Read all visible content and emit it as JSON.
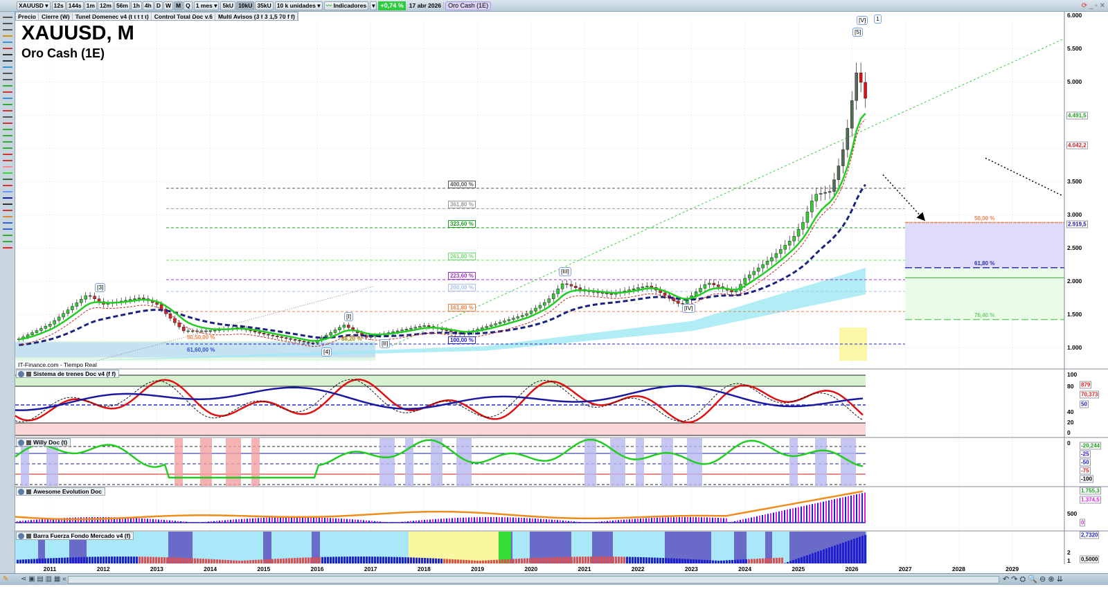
{
  "toolbar": {
    "symbol": "XAUUSD",
    "intervals": [
      "12s",
      "144s",
      "1m",
      "12m",
      "56m",
      "1h",
      "4h",
      "D",
      "W",
      "M",
      "Q"
    ],
    "active_interval": "M",
    "period": "1 mes",
    "units": [
      "5kU",
      "10kU",
      "35kU"
    ],
    "active_unit": "10kU",
    "unit_select": "10 k unidades",
    "indicators_label": "Indicadores",
    "change_pct": "+0,74 %",
    "date": "17 abr 2026",
    "instrument_tag": "Oro Cash (1E)"
  },
  "indicator_bar": [
    "Precio",
    "Cierre (W)",
    "Tunel Domenec v4 (t t t t t)",
    "Control Total Doc v.6",
    "Multi Avisos (3 f 3 1,5 70 f f)"
  ],
  "chart": {
    "title": "XAUUSD, M",
    "subtitle": "Oro Cash (1E)",
    "source": "IT-Finance.com - Tiempo Real",
    "price_axis": [
      "6.000",
      "5.500",
      "5.000",
      "3.500",
      "3.000",
      "2.500",
      "2.000",
      "1.500",
      "1.000"
    ],
    "price_badges": [
      {
        "text": "4.491,5",
        "color": "#1a9e1a"
      },
      {
        "text": "4.042,2",
        "color": "#c81e1e"
      },
      {
        "text": "2.919,5",
        "color": "#1a1aa0"
      }
    ],
    "fib_levels": [
      {
        "label": "400,00 %",
        "price": 3396,
        "color": "#555555"
      },
      {
        "label": "361,80 %",
        "price": 3090,
        "color": "#999999"
      },
      {
        "label": "323,60 %",
        "price": 2802,
        "color": "#1f9a1f"
      },
      {
        "label": "261,80 %",
        "price": 2312,
        "color": "#6fdc6f"
      },
      {
        "label": "223,60 %",
        "price": 2021,
        "color": "#9b30c8"
      },
      {
        "label": "200,00 %",
        "price": 1844,
        "color": "#a8bff0"
      },
      {
        "label": "161,80 %",
        "price": 1542,
        "color": "#f08040"
      },
      {
        "label": "100,00 %",
        "price": 1052,
        "color": "#2020d0"
      }
    ],
    "retracements": [
      {
        "label": "50,00 %",
        "color": "#f08050"
      },
      {
        "label": "61,80 %",
        "color": "#3030c0"
      },
      {
        "label": "76,40 %",
        "color": "#70d070"
      }
    ],
    "small_labels": [
      "50,50,00 %",
      "61,60,00 %",
      "88,20 %"
    ],
    "wave_labels": [
      "[3]",
      "[4]",
      "[I]",
      "[II]",
      "[III]",
      "[IV]",
      "[5]",
      "[V]",
      "1"
    ],
    "time_axis": [
      "2011",
      "2012",
      "2013",
      "2014",
      "2015",
      "2016",
      "2017",
      "2018",
      "2019",
      "2020",
      "2021",
      "2022",
      "2023",
      "2024",
      "2025",
      "2026",
      "2027",
      "2028",
      "2029"
    ]
  },
  "chart_data": {
    "type": "candlestick",
    "series": [
      {
        "x": [
          2010.4,
          2011,
          2011.7,
          2012,
          2012.7,
          2013,
          2013.3,
          2013.5,
          2014,
          2014.5,
          2015,
          2015.9,
          2016.5,
          2016.9,
          2017.5,
          2018,
          2018.7,
          2019.5,
          2019.9,
          2020.3,
          2020.6,
          2021,
          2021.5,
          2022,
          2022.2,
          2022.8,
          2023.3,
          2023.8,
          2024,
          2024.5,
          2024.9,
          2025.1,
          2025.3,
          2025.6,
          2025.8,
          2025.9,
          2026,
          2026.1,
          2026.25
        ],
        "y": [
          1120,
          1350,
          1800,
          1650,
          1750,
          1650,
          1400,
          1250,
          1250,
          1300,
          1200,
          1060,
          1340,
          1150,
          1250,
          1330,
          1200,
          1400,
          1500,
          1700,
          1970,
          1850,
          1800,
          1900,
          1930,
          1640,
          1980,
          1820,
          2040,
          2350,
          2650,
          2900,
          3300,
          3350,
          3850,
          4200,
          4700,
          5200,
          4750
        ]
      }
    ]
  },
  "panels": [
    {
      "title": "Sistema de trenes Doc v4 (f f)",
      "axis": [
        "100",
        "80",
        "40",
        "20",
        "0"
      ],
      "badges": [
        {
          "text": "879",
          "color": "#e02020"
        },
        {
          "text": "70,373",
          "color": "#e02020"
        },
        {
          "text": "50",
          "color": "#2020c0"
        }
      ]
    },
    {
      "title": "Willy Doc (t)",
      "axis": [
        "0"
      ],
      "badges": [
        {
          "text": "-20,244",
          "color": "#1a9e1a"
        },
        {
          "text": "-25",
          "color": "#2020c0"
        },
        {
          "text": "-50",
          "color": "#2020c0"
        },
        {
          "text": "-75",
          "color": "#e02020"
        },
        {
          "text": "-100",
          "color": "#000000"
        }
      ]
    },
    {
      "title": "Awesome Evolution Doc",
      "axis": [
        "500"
      ],
      "badges": [
        {
          "text": "1.755,3",
          "color": "#1a9e1a"
        },
        {
          "text": "1.374,5",
          "color": "#e020e0"
        },
        {
          "text": "0",
          "color": "#e020e0"
        }
      ]
    },
    {
      "title": "Barra Fuerza Fondo Mercado v4 (f)",
      "axis": [
        "2",
        "1"
      ],
      "badges": [
        {
          "text": "2,7320",
          "color": "#2020c0"
        },
        {
          "text": "0,5000",
          "color": "#000000"
        }
      ]
    }
  ]
}
